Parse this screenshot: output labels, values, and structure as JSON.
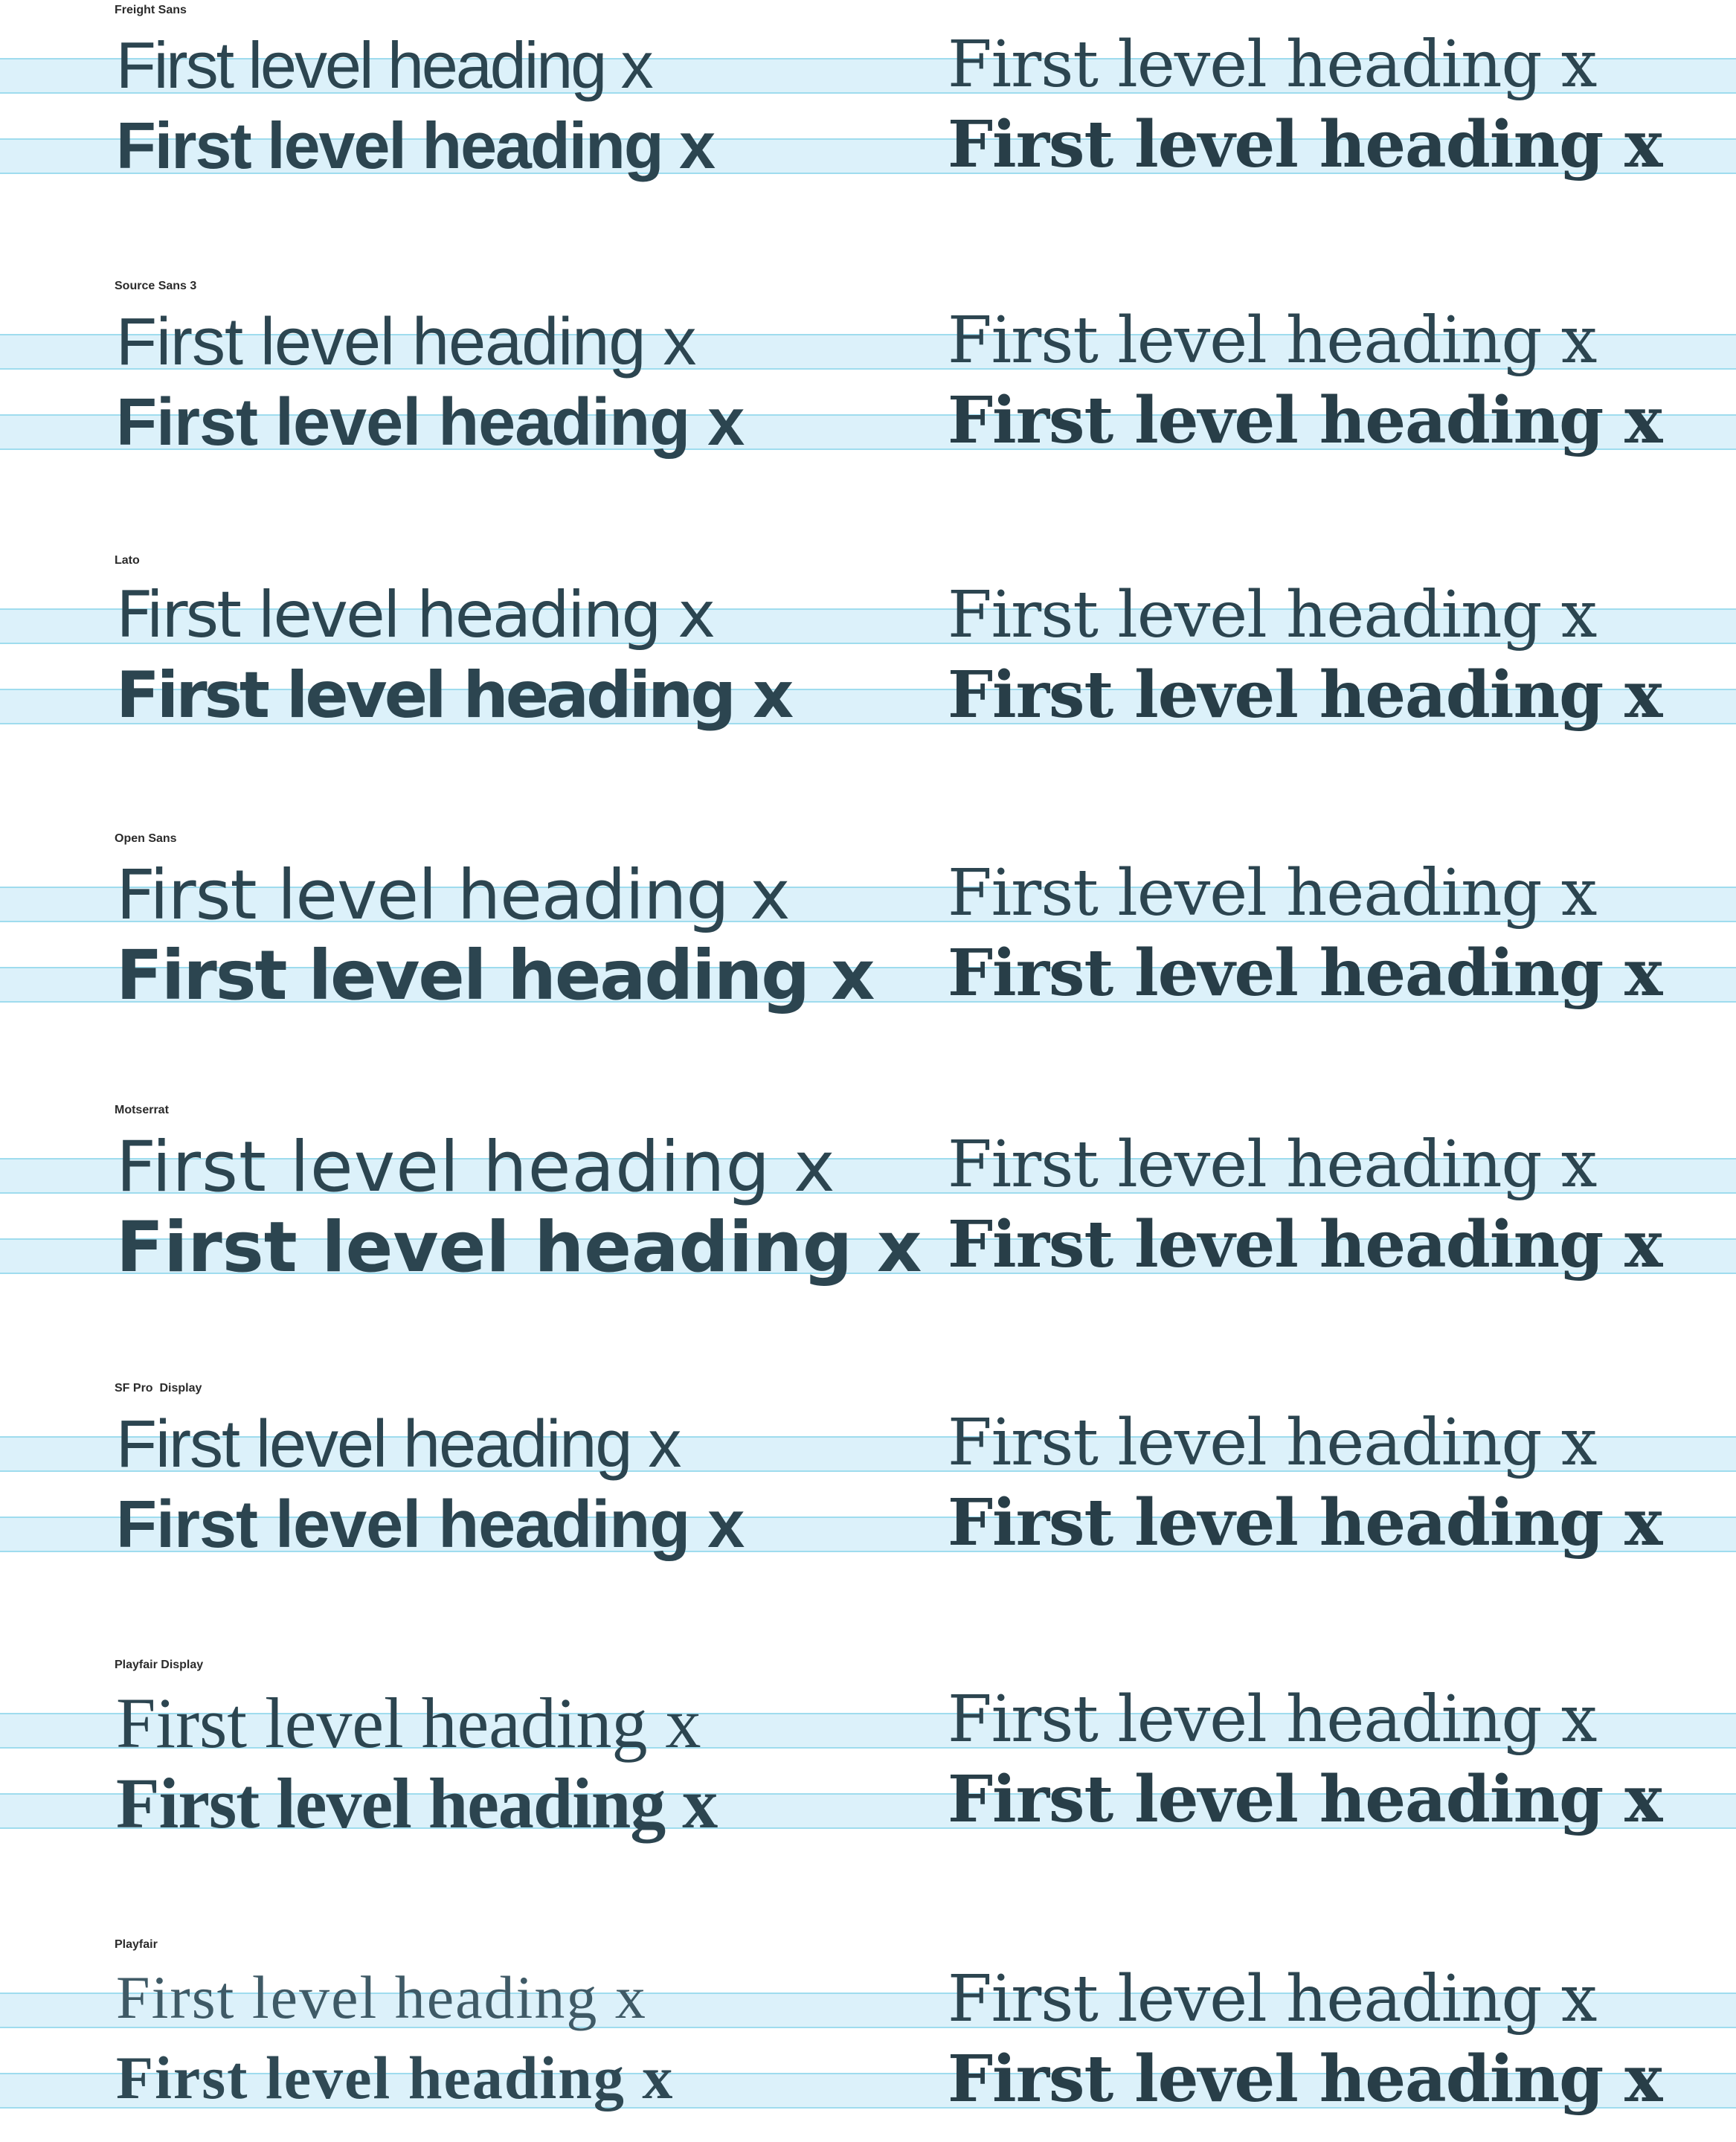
{
  "sample_text": "First level heading x",
  "colors": {
    "band_fill": "#dcf1fa",
    "band_line": "#9fdcee",
    "text": "#2c4550",
    "label": "#2b2b2b"
  },
  "sections": [
    {
      "font_name": "Freight Sans"
    },
    {
      "font_name": "Source Sans 3"
    },
    {
      "font_name": "Lato"
    },
    {
      "font_name": "Open Sans"
    },
    {
      "font_name": "Motserrat"
    },
    {
      "font_name": "SF Pro  Display"
    },
    {
      "font_name": "Playfair Display"
    },
    {
      "font_name": "Playfair"
    }
  ]
}
